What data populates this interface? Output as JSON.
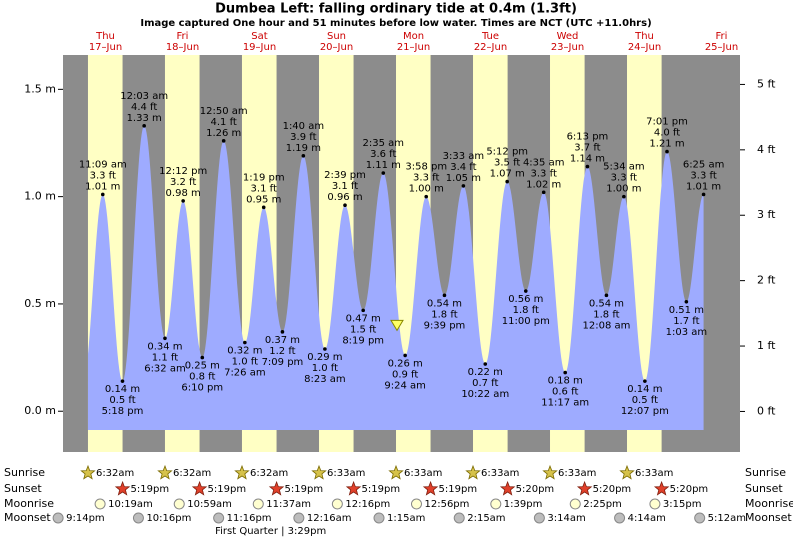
{
  "chart_data": {
    "type": "tide",
    "title": "Dumbea Left: falling  ordinary tide at 0.4m (1.3ft)",
    "subtitle": "Image captured One hour and 51 minutes before low water. Times are NCT (UTC +11.0hrs)",
    "ylim": [
      -0.19,
      1.66
    ],
    "yticks": [
      {
        "value": 0,
        "label": "0.0 m"
      },
      {
        "value": 0.5,
        "label": "0.5 m"
      },
      {
        "value": 1,
        "label": "1.0 m"
      },
      {
        "value": 1.5,
        "label": "1.5 m"
      }
    ],
    "y2lim": [
      -0.62,
      5.45
    ],
    "y2ticks": [
      {
        "value": 0,
        "label": "0 ft"
      },
      {
        "value": 1,
        "label": "1 ft"
      },
      {
        "value": 2,
        "label": "2 ft"
      },
      {
        "value": 3,
        "label": "3 ft"
      },
      {
        "value": 4,
        "label": "4 ft"
      },
      {
        "value": 5,
        "label": "5 ft"
      }
    ],
    "now_level": 0.4,
    "colors": {
      "background": "#8c8c8c",
      "daylight": "#ffffc4",
      "water": "#9eabff",
      "day_label": "#cc0000"
    },
    "row_labels": [
      "Sunrise",
      "Sunset",
      "Moonrise",
      "Moonset"
    ],
    "previous_moonset": "9:14pm",
    "days": [
      {
        "weekday": "Thu",
        "date": "17–Jun",
        "sunrise": "6:32am",
        "sunset": "5:19pm",
        "moonrise": "10:19am",
        "moonset": "10:16pm",
        "tides": [
          {
            "time": "11:09 am",
            "ft": "3.3 ft",
            "m": 1.01,
            "m_label": "1.01 m"
          },
          {
            "time": "5:18 pm",
            "ft": "0.5 ft",
            "m": 0.14,
            "m_label": "0.14 m"
          }
        ]
      },
      {
        "weekday": "Fri",
        "date": "18–Jun",
        "sunrise": "6:32am",
        "sunset": "5:19pm",
        "moonrise": "10:59am",
        "moonset": "11:16pm",
        "tides": [
          {
            "time": "12:03 am",
            "ft": "4.4 ft",
            "m": 1.33,
            "m_label": "1.33 m"
          },
          {
            "time": "6:32 am",
            "ft": "1.1 ft",
            "m": 0.34,
            "m_label": "0.34 m"
          },
          {
            "time": "12:12 pm",
            "ft": "3.2 ft",
            "m": 0.98,
            "m_label": "0.98 m"
          },
          {
            "time": "6:10 pm",
            "ft": "0.8 ft",
            "m": 0.25,
            "m_label": "0.25 m"
          }
        ]
      },
      {
        "weekday": "Sat",
        "date": "19–Jun",
        "sunrise": "6:32am",
        "sunset": "5:19pm",
        "moonrise": "11:37am",
        "moon_phase": "First Quarter | 3:29pm",
        "tides": [
          {
            "time": "12:50 am",
            "ft": "4.1 ft",
            "m": 1.26,
            "m_label": "1.26 m"
          },
          {
            "time": "7:26 am",
            "ft": "1.0 ft",
            "m": 0.32,
            "m_label": "0.32 m"
          },
          {
            "time": "1:19 pm",
            "ft": "3.1 ft",
            "m": 0.95,
            "m_label": "0.95 m"
          },
          {
            "time": "7:09 pm",
            "ft": "1.2 ft",
            "m": 0.37,
            "m_label": "0.37 m"
          }
        ]
      },
      {
        "weekday": "Sun",
        "date": "20–Jun",
        "sunrise": "6:33am",
        "sunset": "5:19pm",
        "moonrise": "12:16pm",
        "moonset": "12:16am",
        "tides": [
          {
            "time": "1:40 am",
            "ft": "3.9 ft",
            "m": 1.19,
            "m_label": "1.19 m"
          },
          {
            "time": "8:23 am",
            "ft": "1.0 ft",
            "m": 0.29,
            "m_label": "0.29 m"
          },
          {
            "time": "2:39 pm",
            "ft": "3.1 ft",
            "m": 0.96,
            "m_label": "0.96 m"
          },
          {
            "time": "8:19 pm",
            "ft": "1.5 ft",
            "m": 0.47,
            "m_label": "0.47 m"
          }
        ]
      },
      {
        "weekday": "Mon",
        "date": "21–Jun",
        "sunrise": "6:33am",
        "sunset": "5:19pm",
        "moonrise": "12:56pm",
        "moonset": "1:15am",
        "tides": [
          {
            "time": "2:35 am",
            "ft": "3.6 ft",
            "m": 1.11,
            "m_label": "1.11 m"
          },
          {
            "time": "9:24 am",
            "ft": "0.9 ft",
            "m": 0.26,
            "m_label": "0.26 m"
          },
          {
            "time": "3:58 pm",
            "ft": "3.3 ft",
            "m": 1.0,
            "m_label": "1.00 m"
          },
          {
            "time": "9:39 pm",
            "ft": "1.8 ft",
            "m": 0.54,
            "m_label": "0.54 m"
          }
        ]
      },
      {
        "weekday": "Tue",
        "date": "22–Jun",
        "sunrise": "6:33am",
        "sunset": "5:20pm",
        "moonrise": "1:39pm",
        "moonset": "2:15am",
        "tides": [
          {
            "time": "3:33 am",
            "ft": "3.4 ft",
            "m": 1.05,
            "m_label": "1.05 m"
          },
          {
            "time": "10:22 am",
            "ft": "0.7 ft",
            "m": 0.22,
            "m_label": "0.22 m"
          },
          {
            "time": "5:12 pm",
            "ft": "3.5 ft",
            "m": 1.07,
            "m_label": "1.07 m"
          },
          {
            "time": "11:00 pm",
            "ft": "1.8 ft",
            "m": 0.56,
            "m_label": "0.56 m"
          }
        ]
      },
      {
        "weekday": "Wed",
        "date": "23–Jun",
        "sunrise": "6:33am",
        "sunset": "5:20pm",
        "moonrise": "2:25pm",
        "moonset": "3:14am",
        "tides": [
          {
            "time": "4:35 am",
            "ft": "3.3 ft",
            "m": 1.02,
            "m_label": "1.02 m"
          },
          {
            "time": "11:17 am",
            "ft": "0.6 ft",
            "m": 0.18,
            "m_label": "0.18 m"
          },
          {
            "time": "6:13 pm",
            "ft": "3.7 ft",
            "m": 1.14,
            "m_label": "1.14 m"
          }
        ]
      },
      {
        "weekday": "Thu",
        "date": "24–Jun",
        "sunrise": "6:33am",
        "sunset": "5:20pm",
        "moonrise": "3:15pm",
        "moonset": "4:14am",
        "tides": [
          {
            "time": "12:08 am",
            "ft": "1.8 ft",
            "m": 0.54,
            "m_label": "0.54 m"
          },
          {
            "time": "5:34 am",
            "ft": "3.3 ft",
            "m": 1.0,
            "m_label": "1.00 m"
          },
          {
            "time": "12:07 pm",
            "ft": "0.5 ft",
            "m": 0.14,
            "m_label": "0.14 m"
          },
          {
            "time": "7:01 pm",
            "ft": "4.0 ft",
            "m": 1.21,
            "m_label": "1.21 m"
          }
        ]
      },
      {
        "weekday": "Fri",
        "date": "25–Jun",
        "moonset": "5:12am",
        "tides": [
          {
            "time": "1:03 am",
            "ft": "1.7 ft",
            "m": 0.51,
            "m_label": "0.51 m"
          },
          {
            "time": "6:25 am",
            "ft": "3.3 ft",
            "m": 1.01,
            "m_label": "1.01 m"
          }
        ]
      }
    ]
  }
}
